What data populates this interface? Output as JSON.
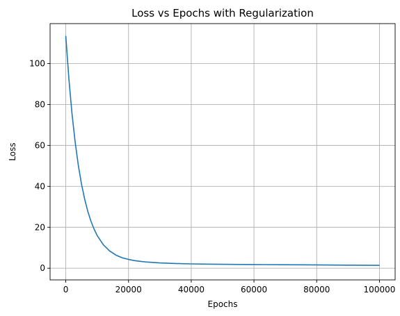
{
  "chart_data": {
    "type": "line",
    "title": "Loss vs Epochs with Regularization",
    "xlabel": "Epochs",
    "ylabel": "Loss",
    "grid": true,
    "xlim": [
      -5000,
      105000
    ],
    "ylim": [
      -5.7,
      119.5
    ],
    "xticks": [
      0,
      20000,
      40000,
      60000,
      80000,
      100000
    ],
    "yticks": [
      0,
      20,
      40,
      60,
      80,
      100
    ],
    "series": [
      {
        "color": "#1f77b4",
        "x": [
          0,
          1000,
          2000,
          3000,
          4000,
          5000,
          6000,
          7000,
          8000,
          9000,
          10000,
          12000,
          14000,
          16000,
          18000,
          20000,
          22000,
          24000,
          26000,
          28000,
          30000,
          35000,
          40000,
          45000,
          50000,
          60000,
          70000,
          80000,
          90000,
          100000
        ],
        "y": [
          113.5,
          92.4,
          75.3,
          61.5,
          50.3,
          41.2,
          33.9,
          27.9,
          23.1,
          19.2,
          16.0,
          11.4,
          8.4,
          6.4,
          5.1,
          4.3,
          3.7,
          3.3,
          3.0,
          2.8,
          2.6,
          2.3,
          2.1,
          2.0,
          1.9,
          1.8,
          1.7,
          1.6,
          1.5,
          1.4
        ]
      }
    ]
  }
}
